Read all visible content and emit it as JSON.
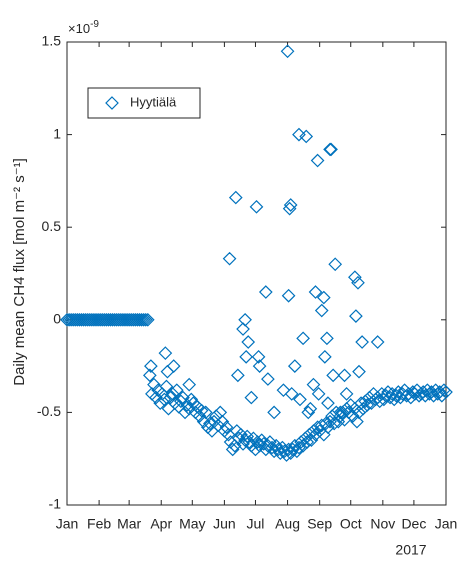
{
  "chart_data": {
    "type": "scatter",
    "y_label": "Daily mean CH4 flux [mol m⁻² s⁻¹]",
    "y_exponent_base": "×10",
    "y_exponent_power": "-9",
    "x_year_label": "2017",
    "legend": "upper left",
    "xlim": [
      0,
      366
    ],
    "xticks": [
      {
        "value": 0,
        "label": "Jan"
      },
      {
        "value": 31,
        "label": "Feb"
      },
      {
        "value": 60,
        "label": "Mar"
      },
      {
        "value": 91,
        "label": "Apr"
      },
      {
        "value": 121,
        "label": "May"
      },
      {
        "value": 152,
        "label": "Jun"
      },
      {
        "value": 182,
        "label": "Jul"
      },
      {
        "value": 213,
        "label": "Aug"
      },
      {
        "value": 244,
        "label": "Sep"
      },
      {
        "value": 274,
        "label": "Oct"
      },
      {
        "value": 305,
        "label": "Nov"
      },
      {
        "value": 335,
        "label": "Dec"
      },
      {
        "value": 366,
        "label": "Jan"
      }
    ],
    "ylim": [
      -1,
      1.5
    ],
    "yticks": [
      -1,
      -0.5,
      0,
      0.5,
      1,
      1.5
    ],
    "x": [
      0,
      2,
      4,
      6,
      8,
      10,
      12,
      14,
      16,
      18,
      20,
      22,
      24,
      26,
      28,
      30,
      32,
      34,
      36,
      38,
      40,
      42,
      44,
      46,
      48,
      50,
      52,
      54,
      56,
      58,
      60,
      62,
      64,
      66,
      68,
      70,
      72,
      74,
      76,
      78,
      80,
      81,
      82,
      84,
      86,
      88,
      90,
      92,
      94,
      96,
      98,
      100,
      102,
      104,
      106,
      108,
      110,
      112,
      114,
      116,
      118,
      120,
      122,
      124,
      126,
      128,
      130,
      132,
      134,
      136,
      138,
      140,
      142,
      144,
      146,
      148,
      150,
      152,
      154,
      156,
      158,
      160,
      162,
      164,
      166,
      168,
      170,
      172,
      174,
      176,
      178,
      180,
      182,
      184,
      186,
      188,
      190,
      192,
      194,
      196,
      198,
      200,
      202,
      204,
      206,
      208,
      210,
      212,
      214,
      216,
      218,
      220,
      222,
      224,
      226,
      228,
      230,
      232,
      234,
      236,
      238,
      240,
      242,
      244,
      246,
      248,
      250,
      252,
      254,
      256,
      258,
      260,
      262,
      264,
      266,
      268,
      270,
      272,
      274,
      276,
      278,
      280,
      282,
      284,
      286,
      288,
      290,
      292,
      294,
      296,
      298,
      300,
      302,
      304,
      306,
      308,
      310,
      312,
      314,
      316,
      318,
      320,
      322,
      324,
      326,
      328,
      330,
      332,
      334,
      336,
      338,
      340,
      342,
      344,
      346,
      348,
      350,
      352,
      354,
      356,
      358,
      360,
      362,
      364,
      366,
      95,
      97,
      103,
      118,
      157,
      163,
      165,
      170,
      172,
      173,
      175,
      178,
      183,
      185,
      186,
      192,
      194,
      200,
      209,
      213,
      214,
      215,
      216,
      217,
      220,
      224,
      225,
      228,
      231,
      233,
      238,
      240,
      242,
      243,
      246,
      248,
      249,
      251,
      254,
      255,
      257,
      259,
      264,
      268,
      270,
      278,
      279,
      281,
      282,
      285,
      300,
      252,
      235
    ],
    "series": [
      {
        "name": "Hyytiälä",
        "color": "#0072BD",
        "values": [
          0,
          0,
          0,
          0,
          0,
          0,
          0,
          0,
          0,
          0,
          0,
          0,
          0,
          0,
          0,
          0,
          0,
          0,
          0,
          0,
          0,
          0,
          0,
          0,
          0,
          0,
          0,
          0,
          0,
          0,
          0,
          0,
          0,
          0,
          0,
          0,
          0,
          0,
          0,
          0,
          -0.3,
          -0.25,
          -0.4,
          -0.35,
          -0.42,
          -0.38,
          -0.45,
          -0.4,
          -0.43,
          -0.36,
          -0.48,
          -0.42,
          -0.4,
          -0.45,
          -0.38,
          -0.47,
          -0.44,
          -0.42,
          -0.5,
          -0.46,
          -0.48,
          -0.43,
          -0.45,
          -0.5,
          -0.47,
          -0.52,
          -0.49,
          -0.55,
          -0.5,
          -0.58,
          -0.56,
          -0.6,
          -0.55,
          -0.52,
          -0.57,
          -0.5,
          -0.55,
          -0.6,
          -0.58,
          -0.62,
          -0.66,
          -0.7,
          -0.68,
          -0.6,
          -0.64,
          -0.62,
          -0.67,
          -0.65,
          -0.63,
          -0.66,
          -0.68,
          -0.64,
          -0.7,
          -0.66,
          -0.68,
          -0.65,
          -0.67,
          -0.7,
          -0.68,
          -0.66,
          -0.69,
          -0.71,
          -0.68,
          -0.7,
          -0.72,
          -0.69,
          -0.71,
          -0.73,
          -0.7,
          -0.72,
          -0.7,
          -0.68,
          -0.71,
          -0.69,
          -0.66,
          -0.68,
          -0.64,
          -0.66,
          -0.62,
          -0.65,
          -0.6,
          -0.62,
          -0.58,
          -0.6,
          -0.57,
          -0.62,
          -0.56,
          -0.58,
          -0.55,
          -0.52,
          -0.56,
          -0.5,
          -0.55,
          -0.52,
          -0.5,
          -0.54,
          -0.48,
          -0.5,
          -0.46,
          -0.52,
          -0.48,
          -0.55,
          -0.5,
          -0.45,
          -0.48,
          -0.44,
          -0.46,
          -0.42,
          -0.45,
          -0.4,
          -0.43,
          -0.42,
          -0.44,
          -0.4,
          -0.43,
          -0.41,
          -0.39,
          -0.42,
          -0.4,
          -0.43,
          -0.41,
          -0.39,
          -0.42,
          -0.4,
          -0.38,
          -0.41,
          -0.4,
          -0.42,
          -0.39,
          -0.4,
          -0.38,
          -0.41,
          -0.4,
          -0.39,
          -0.41,
          -0.38,
          -0.4,
          -0.39,
          -0.41,
          -0.38,
          -0.4,
          -0.39,
          -0.41,
          -0.38,
          -0.39,
          -0.18,
          -0.28,
          -0.25,
          -0.35,
          0.33,
          0.66,
          -0.3,
          -0.05,
          0.0,
          -0.2,
          -0.12,
          -0.42,
          0.61,
          -0.2,
          -0.25,
          0.15,
          -0.32,
          -0.5,
          -0.38,
          1.45,
          0.13,
          0.6,
          0.62,
          -0.4,
          -0.25,
          1.0,
          -0.43,
          -0.1,
          0.99,
          -0.5,
          -0.35,
          0.15,
          0.86,
          -0.4,
          0.05,
          0.12,
          -0.2,
          -0.1,
          0.92,
          0.92,
          -0.3,
          0.3,
          -0.5,
          -0.3,
          -0.4,
          0.23,
          0.02,
          0.2,
          -0.28,
          -0.12,
          -0.12,
          -0.45,
          -0.48
        ]
      }
    ]
  }
}
